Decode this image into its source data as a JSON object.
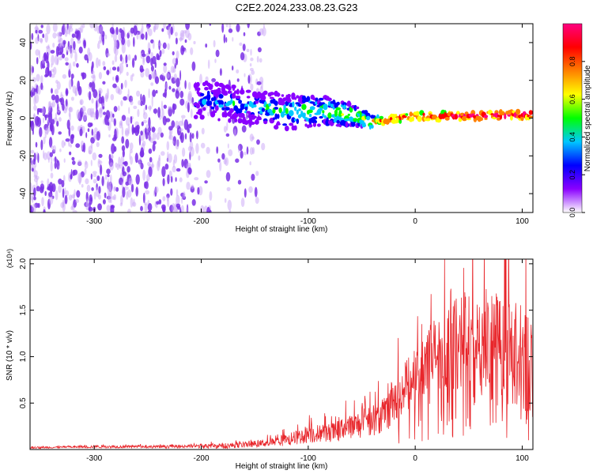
{
  "title": "C2E2.2024.233.08.23.G23",
  "colors": {
    "noise": "#7a2fe6",
    "noise_light": "#c9a6f7",
    "snr_line": "#e8262b",
    "axis": "#000000"
  },
  "chart_data": [
    {
      "type": "heatmap",
      "xlabel": "Height of straight line (km)",
      "ylabel": "Frequency (Hz)",
      "xlim": [
        -360,
        110
      ],
      "ylim": [
        -50,
        50
      ],
      "xticks": [
        {
          "v": -300,
          "label": "-300"
        },
        {
          "v": -200,
          "label": "-200"
        },
        {
          "v": -100,
          "label": "-100"
        },
        {
          "v": 0,
          "label": "0"
        },
        {
          "v": 100,
          "label": "100"
        }
      ],
      "yticks": [
        {
          "v": -40,
          "label": "-40"
        },
        {
          "v": -20,
          "label": "-20"
        },
        {
          "v": 0,
          "label": "0"
        },
        {
          "v": 20,
          "label": "20"
        },
        {
          "v": 40,
          "label": "40"
        }
      ],
      "colorbar": {
        "label": "Normalized spectral amplitude",
        "range": [
          0,
          1
        ],
        "ticks": [
          {
            "v": 0.0,
            "label": "0.0"
          },
          {
            "v": 0.2,
            "label": "0.2"
          },
          {
            "v": 0.4,
            "label": "0.4"
          },
          {
            "v": 0.6,
            "label": "0.6"
          },
          {
            "v": 0.8,
            "label": "0.8"
          }
        ],
        "stops": [
          "#ffffff",
          "#8a00ff",
          "#0000ff",
          "#00c8ff",
          "#00ff00",
          "#ffff00",
          "#ff8000",
          "#ff0000",
          "#ff0080"
        ]
      },
      "signal_track": [
        {
          "x": -205,
          "f": 10,
          "a": 0.25,
          "spread": 10
        },
        {
          "x": -150,
          "f": 6,
          "a": 0.35,
          "spread": 9
        },
        {
          "x": -120,
          "f": 3,
          "a": 0.4,
          "spread": 9
        },
        {
          "x": -90,
          "f": 4,
          "a": 0.45,
          "spread": 8
        },
        {
          "x": -60,
          "f": 2,
          "a": 0.5,
          "spread": 6
        },
        {
          "x": -40,
          "f": -2,
          "a": 0.6,
          "spread": 3
        },
        {
          "x": -30,
          "f": -1,
          "a": 0.75,
          "spread": 2
        },
        {
          "x": 0,
          "f": 1,
          "a": 0.85,
          "spread": 2
        },
        {
          "x": 50,
          "f": 1,
          "a": 0.9,
          "spread": 2
        },
        {
          "x": 110,
          "f": 2,
          "a": 0.9,
          "spread": 2
        }
      ]
    },
    {
      "type": "line",
      "xlabel": "Height of straight line (km)",
      "ylabel": "SNR (10 * v/v)",
      "yunit": "(x10⁴)",
      "xlim": [
        -360,
        110
      ],
      "ylim": [
        0,
        2.05
      ],
      "xticks": [
        {
          "v": -300,
          "label": "-300"
        },
        {
          "v": -200,
          "label": "-200"
        },
        {
          "v": -100,
          "label": "-100"
        },
        {
          "v": 0,
          "label": "0"
        },
        {
          "v": 100,
          "label": "100"
        }
      ],
      "yticks": [
        {
          "v": 0.5,
          "label": "0.5"
        },
        {
          "v": 1.0,
          "label": "1.0"
        },
        {
          "v": 1.5,
          "label": "1.5"
        },
        {
          "v": 2.0,
          "label": "2.0"
        }
      ],
      "series": [
        {
          "x": [
            -360,
            -330,
            -300,
            -270,
            -240,
            -210,
            -180,
            -160,
            -140,
            -120,
            -110,
            -100,
            -90,
            -80,
            -70,
            -60,
            -50,
            -40,
            -30,
            -25,
            -20,
            -10,
            0,
            10,
            20,
            30,
            40,
            50,
            60,
            70,
            80,
            90,
            100,
            110
          ],
          "y": [
            0.02,
            0.025,
            0.03,
            0.03,
            0.03,
            0.035,
            0.04,
            0.05,
            0.07,
            0.1,
            0.13,
            0.17,
            0.17,
            0.18,
            0.2,
            0.24,
            0.28,
            0.32,
            0.35,
            0.38,
            0.55,
            0.65,
            0.8,
            0.95,
            1.05,
            1.1,
            1.15,
            1.15,
            1.2,
            1.1,
            1.1,
            1.05,
            1.0,
            0.95
          ],
          "amp": [
            0.01,
            0.01,
            0.015,
            0.015,
            0.015,
            0.02,
            0.03,
            0.03,
            0.04,
            0.06,
            0.08,
            0.1,
            0.1,
            0.1,
            0.12,
            0.14,
            0.16,
            0.18,
            0.2,
            0.2,
            0.25,
            0.28,
            0.32,
            0.36,
            0.4,
            0.45,
            0.5,
            0.55,
            0.6,
            0.6,
            0.6,
            0.6,
            0.6,
            0.55
          ]
        }
      ]
    }
  ]
}
